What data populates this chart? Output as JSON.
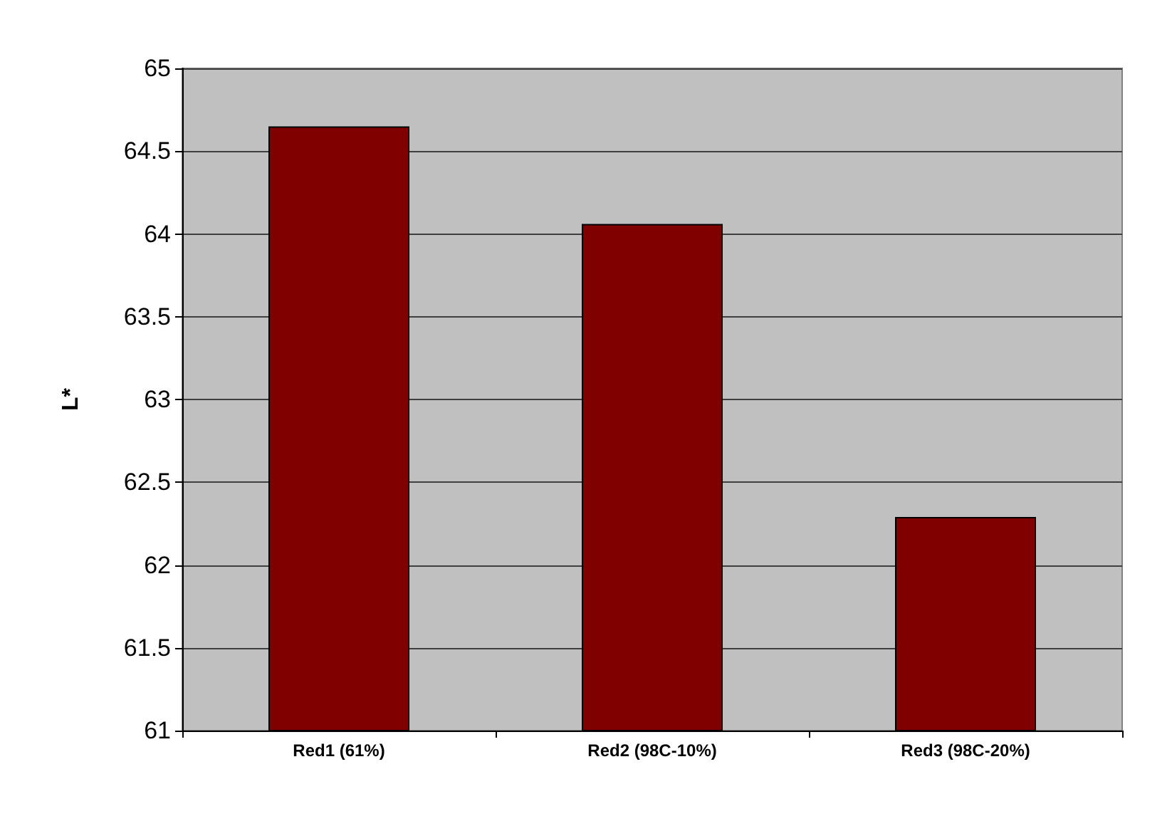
{
  "chart_data": {
    "type": "bar",
    "ylabel": "L*",
    "categories": [
      "Red1 (61%)",
      "Red2 (98C-10%)",
      "Red3 (98C-20%)"
    ],
    "values": [
      64.65,
      64.06,
      62.29
    ],
    "color": "#800000",
    "ylim": [
      61,
      65
    ],
    "yticks": [
      61,
      61.5,
      62,
      62.5,
      63,
      63.5,
      64,
      64.5,
      65
    ],
    "grid": "y"
  }
}
